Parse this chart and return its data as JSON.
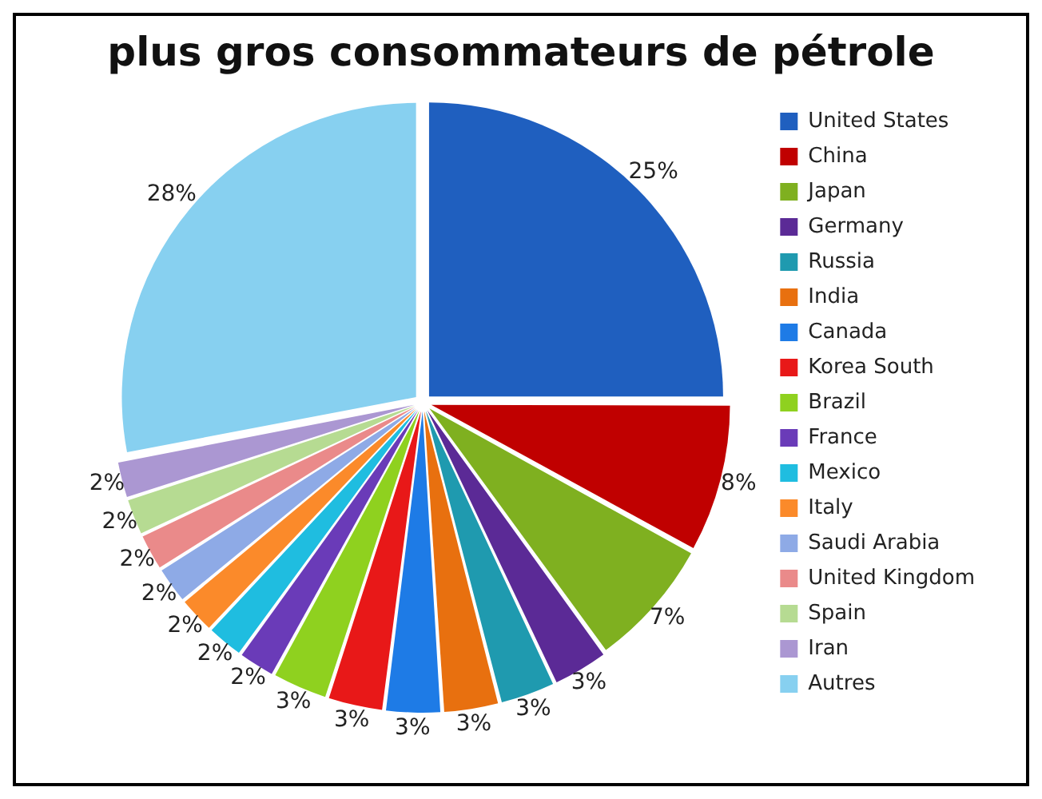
{
  "chart_data": {
    "type": "pie",
    "title": "plus gros consommateurs de pétrole",
    "categories": [
      "United States",
      "China",
      "Japan",
      "Germany",
      "Russia",
      "India",
      "Canada",
      "Korea South",
      "Brazil",
      "France",
      "Mexico",
      "Italy",
      "Saudi Arabia",
      "United Kingdom",
      "Spain",
      "Iran",
      "Autres"
    ],
    "values": [
      25,
      8,
      7,
      3,
      3,
      3,
      3,
      3,
      3,
      2,
      2,
      2,
      2,
      2,
      2,
      2,
      28
    ],
    "colors": [
      "#1f5fbf",
      "#c00000",
      "#7fb020",
      "#5b2a96",
      "#1f9aaf",
      "#e8700f",
      "#1e7be6",
      "#e81818",
      "#8fd11f",
      "#6a3bb8",
      "#1fbde0",
      "#fb8a2a",
      "#8eaae6",
      "#ea8a8a",
      "#b6db92",
      "#ab97d2",
      "#87d0f0"
    ],
    "value_labels": [
      "25%",
      "8%",
      "7%",
      "3%",
      "3%",
      "3%",
      "3%",
      "3%",
      "3%",
      "2%",
      "2%",
      "2%",
      "2%",
      "2%",
      "2%",
      "2%",
      "28%"
    ],
    "legend": "right"
  }
}
